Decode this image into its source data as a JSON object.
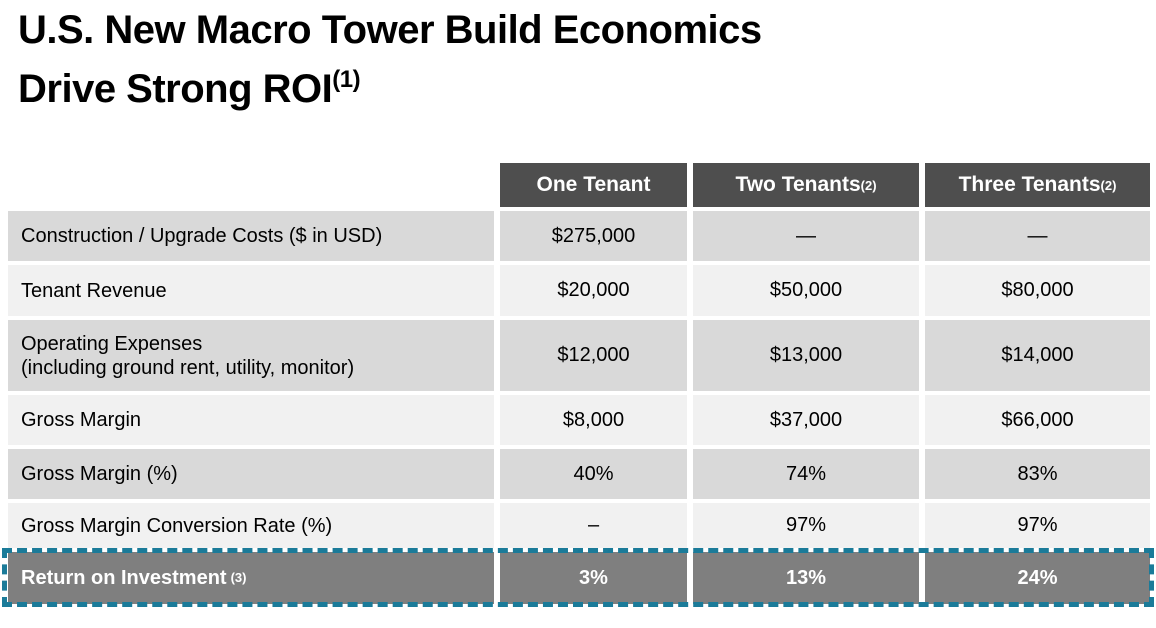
{
  "title": {
    "line1": "U.S. New Macro Tower Build Economics",
    "line2": "Drive Strong ROI",
    "line2_sup": "(1)"
  },
  "table": {
    "header": {
      "col1": {
        "text": "One Tenant",
        "sup": ""
      },
      "col2": {
        "text": "Two Tenants",
        "sup": "(2)"
      },
      "col3": {
        "text": "Three Tenants",
        "sup": "(2)"
      }
    },
    "rows": [
      {
        "label": "Construction / Upgrade Costs ($ in USD)",
        "label2": "",
        "values": [
          "$275,000",
          "—",
          "—"
        ]
      },
      {
        "label": "Tenant Revenue",
        "label2": "",
        "values": [
          "$20,000",
          "$50,000",
          "$80,000"
        ]
      },
      {
        "label": "Operating Expenses",
        "label2": "(including ground rent, utility, monitor)",
        "values": [
          "$12,000",
          "$13,000",
          "$14,000"
        ]
      },
      {
        "label": "Gross Margin",
        "label2": "",
        "values": [
          "$8,000",
          "$37,000",
          "$66,000"
        ]
      },
      {
        "label": "Gross Margin (%)",
        "label2": "",
        "values": [
          "40%",
          "74%",
          "83%"
        ]
      },
      {
        "label": "Gross Margin Conversion Rate (%)",
        "label2": "",
        "values": [
          "–",
          "97%",
          "97%"
        ]
      }
    ],
    "roi_row": {
      "label": "Return on Investment",
      "sup": "(3)",
      "values": [
        "3%",
        "13%",
        "24%"
      ]
    }
  },
  "colors": {
    "header-bg": "#4e4e4e",
    "row-dark": "#d9d9d9",
    "row-light": "#f1f1f1",
    "roi-bg": "#7f7f7f",
    "teal": "#1b7b99",
    "text": "#000000"
  }
}
